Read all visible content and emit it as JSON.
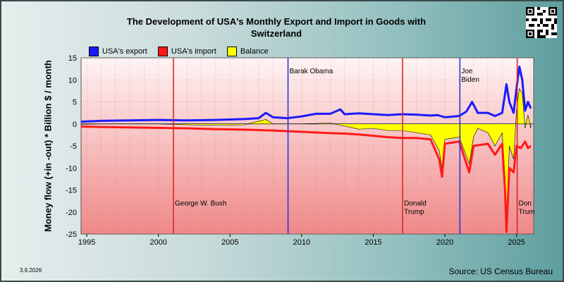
{
  "title": "The Development of USA's Monthly Export and Import in Goods with Switzerland",
  "date_stamp": "3.9.2026",
  "source": "Source: US Census Bureau",
  "colors": {
    "export": "#1a1aff",
    "import": "#ff1a1a",
    "balance": "#ffff00",
    "plot_top": "#fff4f4",
    "plot_bottom": "#f08888",
    "president_line_red": "#dd2222",
    "president_line_blue": "#2233dd"
  },
  "legend": [
    {
      "label": "USA's export",
      "color": "#1a1aff"
    },
    {
      "label": "USA's import",
      "color": "#ff1a1a"
    },
    {
      "label": "Balance",
      "color": "#ffff00"
    }
  ],
  "chart_data": {
    "type": "line",
    "ylabel": "Money flow (+in -out) * Billion $ / month",
    "xlim": [
      1994.6,
      2026.2
    ],
    "ylim": [
      -25,
      15
    ],
    "yticks": [
      15,
      10,
      5,
      0,
      -5,
      -10,
      -15,
      -20,
      -25
    ],
    "xticks": [
      1995,
      2000,
      2005,
      2010,
      2015,
      2020,
      2025
    ],
    "grid": true,
    "legend_position": "top-left",
    "series": [
      {
        "name": "USA's export",
        "x": [
          1994.6,
          1996,
          1998,
          2000,
          2002,
          2004,
          2006,
          2007,
          2007.5,
          2008,
          2009,
          2010,
          2011,
          2012,
          2012.7,
          2013,
          2014,
          2015,
          2016,
          2017,
          2018,
          2019,
          2019.5,
          2020,
          2021,
          2021.5,
          2021.9,
          2022.3,
          2023,
          2023.5,
          2024,
          2024.3,
          2024.5,
          2024.8,
          2025,
          2025.2,
          2025.4,
          2025.6,
          2025.8,
          2026
        ],
        "y": [
          0.5,
          0.7,
          0.8,
          0.9,
          0.8,
          0.9,
          1.1,
          1.3,
          2.5,
          1.5,
          1.3,
          1.7,
          2.3,
          2.3,
          3.3,
          2.2,
          2.4,
          2.2,
          2.0,
          2.2,
          2.1,
          1.9,
          2.0,
          1.5,
          1.8,
          2.8,
          5.0,
          2.5,
          2.5,
          1.8,
          2.5,
          9.0,
          5.0,
          2.5,
          8.0,
          13.0,
          10.0,
          3.0,
          5.0,
          3.5
        ]
      },
      {
        "name": "USA's import",
        "x": [
          1994.6,
          1996,
          1998,
          2000,
          2002,
          2004,
          2006,
          2008,
          2010,
          2012,
          2013,
          2014,
          2015,
          2016,
          2017,
          2018,
          2019,
          2019.6,
          2019.8,
          2020,
          2021,
          2021.7,
          2022,
          2023,
          2023.5,
          2024,
          2024.2,
          2024.3,
          2024.5,
          2024.8,
          2025,
          2025.3,
          2025.6,
          2025.8,
          2026
        ],
        "y": [
          -0.6,
          -0.7,
          -0.8,
          -0.9,
          -1.0,
          -1.2,
          -1.3,
          -1.5,
          -1.8,
          -2.1,
          -2.2,
          -2.4,
          -2.7,
          -3.0,
          -3.2,
          -3.2,
          -3.5,
          -8.0,
          -12.0,
          -4.5,
          -4.0,
          -11.0,
          -5.0,
          -4.5,
          -7.0,
          -4.5,
          -15.0,
          -24.5,
          -10.0,
          -11.0,
          -5.0,
          -5.5,
          -4.0,
          -5.5,
          -5.0
        ]
      },
      {
        "name": "Balance",
        "x": [
          1994.6,
          1996,
          1998,
          2000,
          2002,
          2004,
          2006,
          2007.5,
          2008,
          2010,
          2012,
          2013,
          2014,
          2015,
          2016,
          2017,
          2018,
          2019,
          2019.6,
          2019.8,
          2020,
          2021,
          2021.7,
          2022,
          2022.3,
          2023,
          2023.5,
          2024,
          2024.2,
          2024.3,
          2024.5,
          2024.8,
          2025,
          2025.2,
          2025.4,
          2025.6,
          2025.8,
          2026
        ],
        "y": [
          -0.1,
          0.0,
          0.0,
          0.0,
          -0.2,
          -0.3,
          -0.2,
          1.0,
          0.0,
          0.0,
          0.2,
          -0.5,
          -1.2,
          -1.0,
          -1.5,
          -1.5,
          -2.0,
          -2.5,
          -6.0,
          -10.0,
          -3.5,
          -3.0,
          -9.0,
          -3.0,
          -1.0,
          -2.0,
          -5.0,
          -2.0,
          -12.0,
          -22.0,
          -5.0,
          -8.0,
          3.0,
          8.0,
          7.0,
          -1.0,
          2.0,
          -1.0
        ]
      }
    ],
    "annotations": [
      {
        "label": "George W. Bush",
        "x": 2001.05,
        "color": "red",
        "label_y": -18.5
      },
      {
        "label": "Barak Obama",
        "x": 2009.05,
        "color": "blue",
        "label_y": 11.5
      },
      {
        "label": "Donald\nTrump",
        "x": 2017.05,
        "color": "red",
        "label_y": -18.5
      },
      {
        "label": "Joe\nBiden",
        "x": 2021.05,
        "color": "blue",
        "label_y": 11.5
      },
      {
        "label": "Don\nTrum",
        "x": 2025.05,
        "color": "red",
        "label_y": -18.5
      }
    ]
  }
}
